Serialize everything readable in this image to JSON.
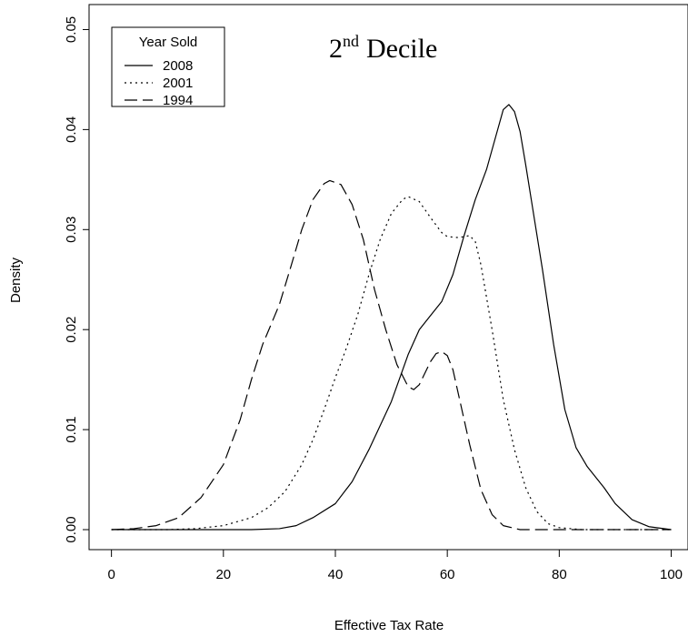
{
  "chart_data": {
    "type": "line",
    "title": "Decile",
    "title_prefix": "2",
    "title_superscript": "nd",
    "xlabel": "Effective Tax Rate",
    "ylabel": "Density",
    "xlim": [
      -4,
      103
    ],
    "ylim": [
      -0.002,
      0.0525
    ],
    "x_ticks": [
      0,
      20,
      40,
      60,
      80,
      100
    ],
    "x_tick_labels": [
      "0",
      "20",
      "40",
      "60",
      "80",
      "100"
    ],
    "y_ticks": [
      0.0,
      0.01,
      0.02,
      0.03,
      0.04,
      0.05
    ],
    "y_tick_labels": [
      "0.00",
      "0.01",
      "0.02",
      "0.03",
      "0.04",
      "0.05"
    ],
    "grid": false,
    "legend": {
      "title": "Year Sold",
      "placement": "top-left"
    },
    "series": [
      {
        "name": "2008",
        "line_style": "solid",
        "color": "#000000",
        "points": [
          [
            0,
            0.0
          ],
          [
            10,
            0.0
          ],
          [
            20,
            0.0
          ],
          [
            25,
            0.0
          ],
          [
            30,
            0.0001
          ],
          [
            33,
            0.0004
          ],
          [
            36,
            0.0012
          ],
          [
            40,
            0.0026
          ],
          [
            43,
            0.0048
          ],
          [
            46,
            0.008
          ],
          [
            50,
            0.0128
          ],
          [
            53,
            0.0175
          ],
          [
            55,
            0.02
          ],
          [
            57,
            0.0214
          ],
          [
            59,
            0.0228
          ],
          [
            61,
            0.0255
          ],
          [
            63,
            0.0294
          ],
          [
            65,
            0.033
          ],
          [
            67,
            0.036
          ],
          [
            69,
            0.04
          ],
          [
            70,
            0.042
          ],
          [
            71,
            0.0425
          ],
          [
            72,
            0.0418
          ],
          [
            73,
            0.0398
          ],
          [
            74,
            0.0365
          ],
          [
            75,
            0.033
          ],
          [
            77,
            0.026
          ],
          [
            79,
            0.0185
          ],
          [
            81,
            0.012
          ],
          [
            83,
            0.0082
          ],
          [
            85,
            0.0063
          ],
          [
            88,
            0.0042
          ],
          [
            90,
            0.0026
          ],
          [
            93,
            0.001
          ],
          [
            96,
            0.0003
          ],
          [
            100,
            0.0
          ]
        ]
      },
      {
        "name": "2001",
        "line_style": "dotted",
        "color": "#000000",
        "points": [
          [
            0,
            0.0
          ],
          [
            10,
            0.0
          ],
          [
            15,
            0.0001
          ],
          [
            20,
            0.0004
          ],
          [
            25,
            0.0012
          ],
          [
            28,
            0.0022
          ],
          [
            31,
            0.0038
          ],
          [
            34,
            0.0065
          ],
          [
            36,
            0.009
          ],
          [
            38,
            0.012
          ],
          [
            40,
            0.0152
          ],
          [
            42,
            0.0182
          ],
          [
            44,
            0.0215
          ],
          [
            46,
            0.0255
          ],
          [
            48,
            0.029
          ],
          [
            50,
            0.0316
          ],
          [
            52,
            0.033
          ],
          [
            53,
            0.0333
          ],
          [
            55,
            0.0328
          ],
          [
            57,
            0.0312
          ],
          [
            59,
            0.0297
          ],
          [
            60,
            0.0293
          ],
          [
            62,
            0.0292
          ],
          [
            64,
            0.0294
          ],
          [
            65,
            0.0288
          ],
          [
            66,
            0.0265
          ],
          [
            68,
            0.02
          ],
          [
            70,
            0.013
          ],
          [
            72,
            0.008
          ],
          [
            74,
            0.0042
          ],
          [
            76,
            0.0018
          ],
          [
            78,
            0.0006
          ],
          [
            80,
            0.0002
          ],
          [
            84,
            0.0
          ],
          [
            100,
            0.0
          ]
        ]
      },
      {
        "name": "1994",
        "line_style": "dashed",
        "color": "#000000",
        "points": [
          [
            0,
            0.0
          ],
          [
            4,
            0.0001
          ],
          [
            8,
            0.0004
          ],
          [
            12,
            0.0012
          ],
          [
            16,
            0.0032
          ],
          [
            20,
            0.0065
          ],
          [
            23,
            0.011
          ],
          [
            25,
            0.015
          ],
          [
            27,
            0.0185
          ],
          [
            30,
            0.0225
          ],
          [
            32,
            0.0262
          ],
          [
            34,
            0.03
          ],
          [
            36,
            0.033
          ],
          [
            38,
            0.0346
          ],
          [
            39,
            0.0349
          ],
          [
            41,
            0.0345
          ],
          [
            43,
            0.0325
          ],
          [
            45,
            0.029
          ],
          [
            47,
            0.024
          ],
          [
            49,
            0.02
          ],
          [
            51,
            0.0165
          ],
          [
            53,
            0.0143
          ],
          [
            54,
            0.014
          ],
          [
            55,
            0.0145
          ],
          [
            57,
            0.0168
          ],
          [
            58,
            0.0176
          ],
          [
            59,
            0.0178
          ],
          [
            60,
            0.0174
          ],
          [
            61,
            0.016
          ],
          [
            62,
            0.0135
          ],
          [
            64,
            0.0085
          ],
          [
            66,
            0.004
          ],
          [
            68,
            0.0015
          ],
          [
            70,
            0.0004
          ],
          [
            73,
            0.0
          ],
          [
            100,
            0.0
          ]
        ]
      }
    ]
  }
}
